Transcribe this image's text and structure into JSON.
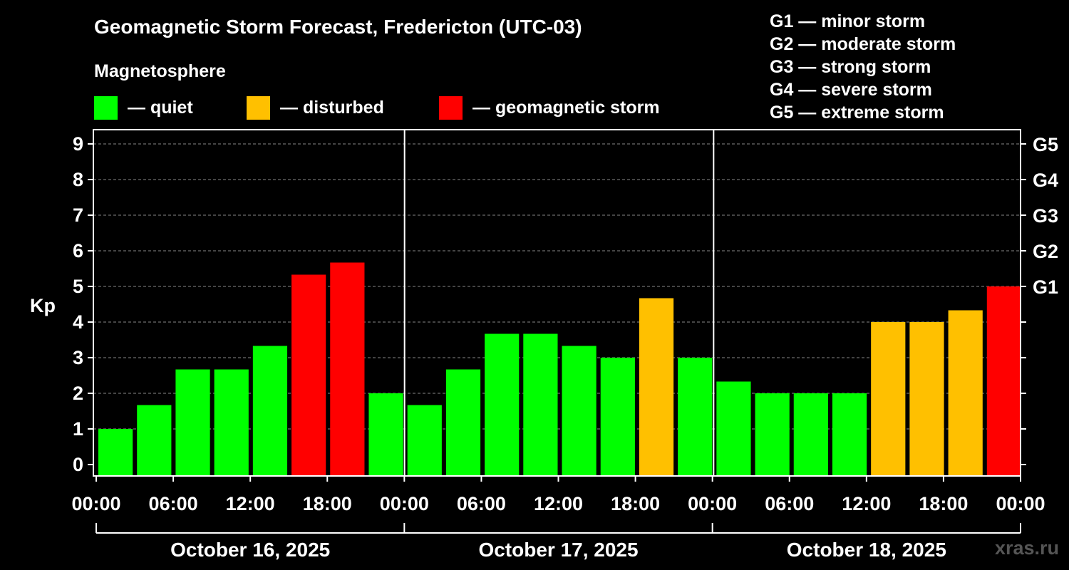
{
  "title": "Geomagnetic Storm Forecast, Fredericton (UTC-03)",
  "subtitle": "Magnetosphere",
  "legend": [
    {
      "label": "— quiet",
      "color": "#00ff00"
    },
    {
      "label": "— disturbed",
      "color": "#ffc000"
    },
    {
      "label": "— geomagnetic storm",
      "color": "#ff0000"
    }
  ],
  "storm_scale": [
    "G1 — minor storm",
    "G2 — moderate storm",
    "G3 — strong storm",
    "G4 — severe storm",
    "G5 — extreme storm"
  ],
  "watermark": "xras.ru",
  "colors": {
    "quiet": "#00ff00",
    "disturbed": "#ffc000",
    "storm": "#ff0000",
    "background": "#000000",
    "axis": "#ffffff"
  },
  "chart_data": {
    "type": "bar",
    "title": "Geomagnetic Storm Forecast, Fredericton (UTC-03)",
    "ylabel": "Kp",
    "ylim": [
      0,
      9
    ],
    "yticks": [
      "0",
      "1",
      "2",
      "3",
      "4",
      "5",
      "6",
      "7",
      "8",
      "9"
    ],
    "right_ticks": [
      {
        "value": 5,
        "label": "G1"
      },
      {
        "value": 6,
        "label": "G2"
      },
      {
        "value": 7,
        "label": "G3"
      },
      {
        "value": 8,
        "label": "G4"
      },
      {
        "value": 9,
        "label": "G5"
      }
    ],
    "xticks": [
      "00:00",
      "06:00",
      "12:00",
      "18:00",
      "00:00",
      "06:00",
      "12:00",
      "18:00",
      "00:00",
      "06:00",
      "12:00",
      "18:00",
      "00:00"
    ],
    "days": [
      "October 16, 2025",
      "October 17, 2025",
      "October 18, 2025"
    ],
    "bar_interval_hours": 3,
    "values": [
      1.0,
      1.67,
      2.67,
      2.67,
      3.33,
      5.33,
      5.67,
      2.0,
      1.67,
      2.67,
      3.67,
      3.67,
      3.33,
      3.0,
      4.67,
      3.0,
      2.33,
      2.0,
      2.0,
      2.0,
      4.0,
      4.0,
      4.33,
      5.0
    ],
    "levels": [
      "quiet",
      "quiet",
      "quiet",
      "quiet",
      "quiet",
      "storm",
      "storm",
      "quiet",
      "quiet",
      "quiet",
      "quiet",
      "quiet",
      "quiet",
      "quiet",
      "disturbed",
      "quiet",
      "quiet",
      "quiet",
      "quiet",
      "quiet",
      "disturbed",
      "disturbed",
      "disturbed",
      "storm"
    ]
  }
}
